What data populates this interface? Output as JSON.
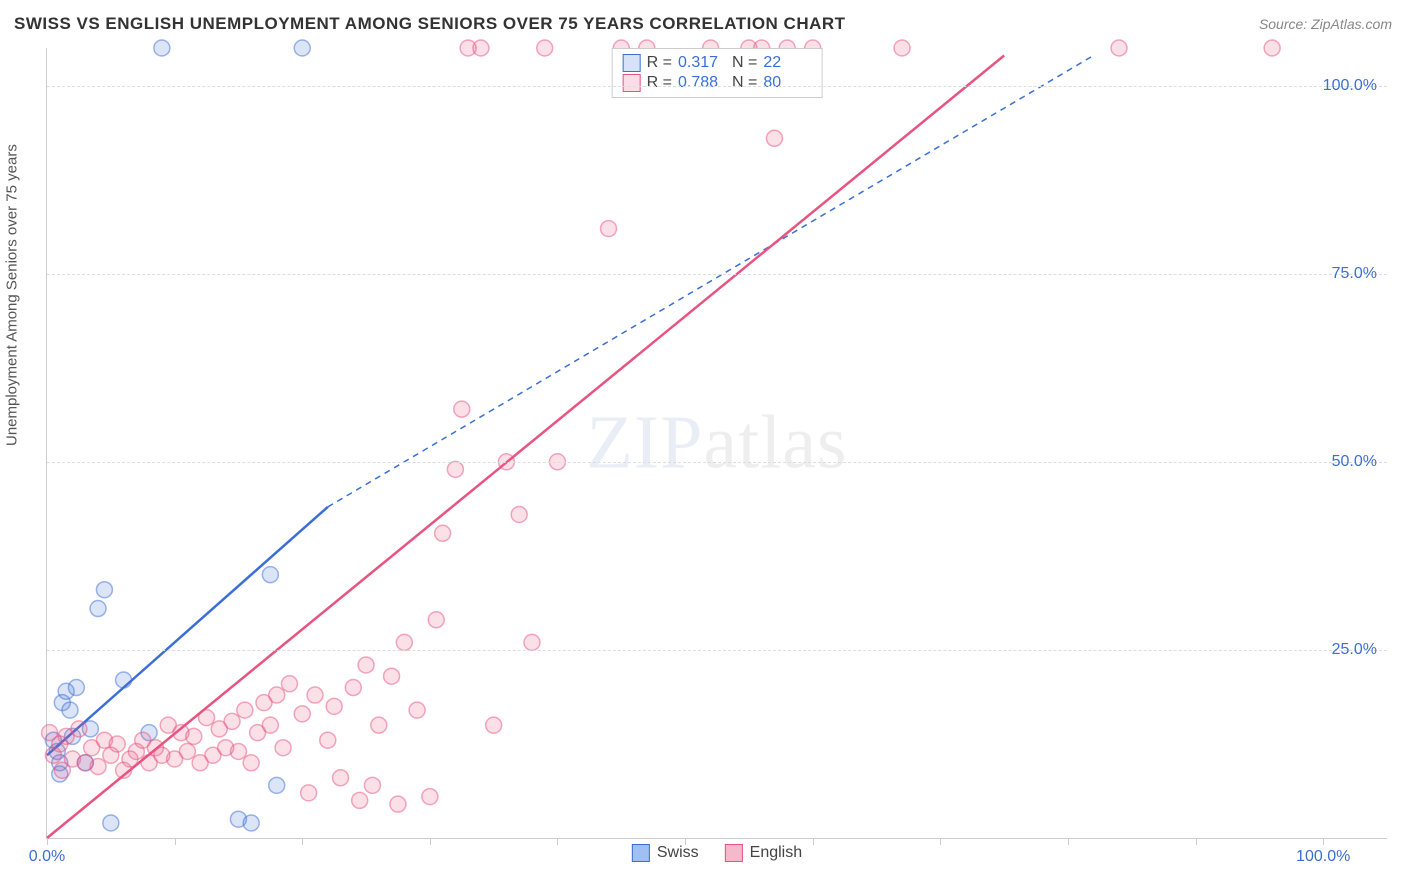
{
  "header": {
    "title": "SWISS VS ENGLISH UNEMPLOYMENT AMONG SENIORS OVER 75 YEARS CORRELATION CHART",
    "source_label": "Source:",
    "source_name": "ZipAtlas.com"
  },
  "watermark": {
    "part1": "ZIP",
    "part2": "atlas"
  },
  "chart": {
    "type": "scatter",
    "background_color": "#ffffff",
    "grid_color": "#dddddd",
    "axis_color": "#cccccc",
    "tick_label_color": "#3b6fd6",
    "xlim": [
      0,
      105
    ],
    "ylim": [
      0,
      105
    ],
    "ytick_positions": [
      25,
      50,
      75,
      100
    ],
    "ytick_labels": [
      "25.0%",
      "50.0%",
      "75.0%",
      "100.0%"
    ],
    "xtick_positions": [
      0,
      10,
      20,
      30,
      40,
      50,
      60,
      70,
      80,
      90,
      100
    ],
    "xtick_label_first": "0.0%",
    "xtick_label_last": "100.0%",
    "yaxis_label": "Unemployment Among Seniors over 75 years",
    "marker_radius": 8,
    "marker_fill_opacity": 0.18,
    "marker_stroke_width": 1.5,
    "series": [
      {
        "name": "Swiss",
        "color": "#3b6fd6",
        "stroke": "#3b6fd6",
        "R": "0.317",
        "N": "22",
        "regression": {
          "x1": 0,
          "y1": 11,
          "x2": 22,
          "y2": 44,
          "dashed_extend_to_x": 82,
          "dashed_extend_to_y": 104
        },
        "points": [
          [
            0.5,
            13
          ],
          [
            0.8,
            11.5
          ],
          [
            1,
            10
          ],
          [
            1.2,
            18
          ],
          [
            1.5,
            19.5
          ],
          [
            1.8,
            17
          ],
          [
            2,
            13.5
          ],
          [
            2.3,
            20
          ],
          [
            3,
            10
          ],
          [
            3.4,
            14.5
          ],
          [
            4,
            30.5
          ],
          [
            4.5,
            33
          ],
          [
            5,
            2
          ],
          [
            6,
            21
          ],
          [
            8,
            14
          ],
          [
            9,
            105
          ],
          [
            15,
            2.5
          ],
          [
            16,
            2
          ],
          [
            17.5,
            35
          ],
          [
            18,
            7
          ],
          [
            20,
            105
          ],
          [
            1.0,
            8.5
          ]
        ]
      },
      {
        "name": "English",
        "color": "#e75480",
        "stroke": "#e75480",
        "R": "0.788",
        "N": "80",
        "regression": {
          "x1": 0,
          "y1": 0,
          "x2": 75,
          "y2": 104
        },
        "points": [
          [
            0.2,
            14
          ],
          [
            0.5,
            11
          ],
          [
            1,
            12.5
          ],
          [
            1.2,
            9
          ],
          [
            1.5,
            13.5
          ],
          [
            2,
            10.5
          ],
          [
            2.5,
            14.5
          ],
          [
            3,
            10
          ],
          [
            3.5,
            12
          ],
          [
            4,
            9.5
          ],
          [
            4.5,
            13
          ],
          [
            5,
            11
          ],
          [
            5.5,
            12.5
          ],
          [
            6,
            9
          ],
          [
            6.5,
            10.5
          ],
          [
            7,
            11.5
          ],
          [
            7.5,
            13
          ],
          [
            8,
            10
          ],
          [
            8.5,
            12
          ],
          [
            9,
            11
          ],
          [
            9.5,
            15
          ],
          [
            10,
            10.5
          ],
          [
            10.5,
            14
          ],
          [
            11,
            11.5
          ],
          [
            11.5,
            13.5
          ],
          [
            12,
            10
          ],
          [
            12.5,
            16
          ],
          [
            13,
            11
          ],
          [
            13.5,
            14.5
          ],
          [
            14,
            12
          ],
          [
            14.5,
            15.5
          ],
          [
            15,
            11.5
          ],
          [
            15.5,
            17
          ],
          [
            16,
            10
          ],
          [
            16.5,
            14
          ],
          [
            17,
            18
          ],
          [
            17.5,
            15
          ],
          [
            18,
            19
          ],
          [
            18.5,
            12
          ],
          [
            19,
            20.5
          ],
          [
            20,
            16.5
          ],
          [
            20.5,
            6
          ],
          [
            21,
            19
          ],
          [
            22,
            13
          ],
          [
            22.5,
            17.5
          ],
          [
            23,
            8
          ],
          [
            24,
            20
          ],
          [
            24.5,
            5
          ],
          [
            25,
            23
          ],
          [
            25.5,
            7
          ],
          [
            26,
            15
          ],
          [
            27,
            21.5
          ],
          [
            27.5,
            4.5
          ],
          [
            28,
            26
          ],
          [
            29,
            17
          ],
          [
            30,
            5.5
          ],
          [
            30.5,
            29
          ],
          [
            31,
            40.5
          ],
          [
            32,
            49
          ],
          [
            32.5,
            57
          ],
          [
            33,
            105
          ],
          [
            34,
            105
          ],
          [
            35,
            15
          ],
          [
            36,
            50
          ],
          [
            37,
            43
          ],
          [
            38,
            26
          ],
          [
            39,
            105
          ],
          [
            40,
            50
          ],
          [
            44,
            81
          ],
          [
            45,
            105
          ],
          [
            47,
            105
          ],
          [
            52,
            105
          ],
          [
            55,
            105
          ],
          [
            56,
            105
          ],
          [
            57,
            93
          ],
          [
            58,
            105
          ],
          [
            60,
            105
          ],
          [
            67,
            105
          ],
          [
            84,
            105
          ],
          [
            96,
            105
          ]
        ]
      }
    ],
    "legend_bottom": [
      {
        "label": "Swiss",
        "fill": "#9ec0f3",
        "stroke": "#3b6fd6"
      },
      {
        "label": "English",
        "fill": "#f5b8cc",
        "stroke": "#e75480"
      }
    ],
    "legend_stats_labels": {
      "R": "R =",
      "N": "N ="
    }
  }
}
